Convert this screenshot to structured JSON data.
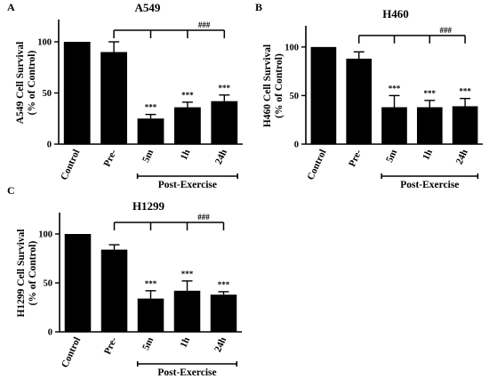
{
  "chart_data": [
    {
      "type": "bar",
      "panel": "A",
      "title": "A549",
      "ylabel_lines": [
        "A549 Cell  Survival",
        "(% of Control)"
      ],
      "ylim": [
        0,
        120
      ],
      "yticks": [
        0,
        50,
        100
      ],
      "ytick_labels": [
        "0",
        "50",
        "100"
      ],
      "categories": [
        "Control",
        "Pre-",
        "5m",
        "1h",
        "24h"
      ],
      "values": [
        100,
        90,
        25,
        36,
        42
      ],
      "errors": [
        0,
        10,
        4,
        5,
        6
      ],
      "significance": [
        "",
        "",
        "***",
        "***",
        "***"
      ],
      "comparison_label": "###",
      "group_label": "Post-Exercise"
    },
    {
      "type": "bar",
      "panel": "B",
      "title": "H460",
      "ylabel_lines": [
        "H460 Cell  Survival",
        "(% of Control)"
      ],
      "ylim": [
        0,
        120
      ],
      "yticks": [
        0,
        50,
        100
      ],
      "ytick_labels": [
        "0",
        "50",
        "100"
      ],
      "categories": [
        "Control",
        "Pre-",
        "5m",
        "1h",
        "24h"
      ],
      "values": [
        100,
        88,
        38,
        38,
        39
      ],
      "errors": [
        0,
        7,
        12,
        7,
        8
      ],
      "significance": [
        "",
        "",
        "***",
        "***",
        "***"
      ],
      "comparison_label": "###",
      "group_label": "Post-Exercise"
    },
    {
      "type": "bar",
      "panel": "C",
      "title": "H1299",
      "ylabel_lines": [
        "H1299 Cell Survival",
        "(% of Control)"
      ],
      "ylim": [
        0,
        120
      ],
      "yticks": [
        0,
        50,
        100
      ],
      "ytick_labels": [
        "0",
        "50",
        "100"
      ],
      "categories": [
        "Control",
        "Pre-",
        "5m",
        "1h",
        "24h"
      ],
      "values": [
        100,
        84,
        34,
        42,
        38
      ],
      "errors": [
        0,
        5,
        8,
        10,
        3
      ],
      "significance": [
        "",
        "",
        "***",
        "***",
        "***"
      ],
      "comparison_label": "###",
      "group_label": "Post-Exercise"
    }
  ]
}
